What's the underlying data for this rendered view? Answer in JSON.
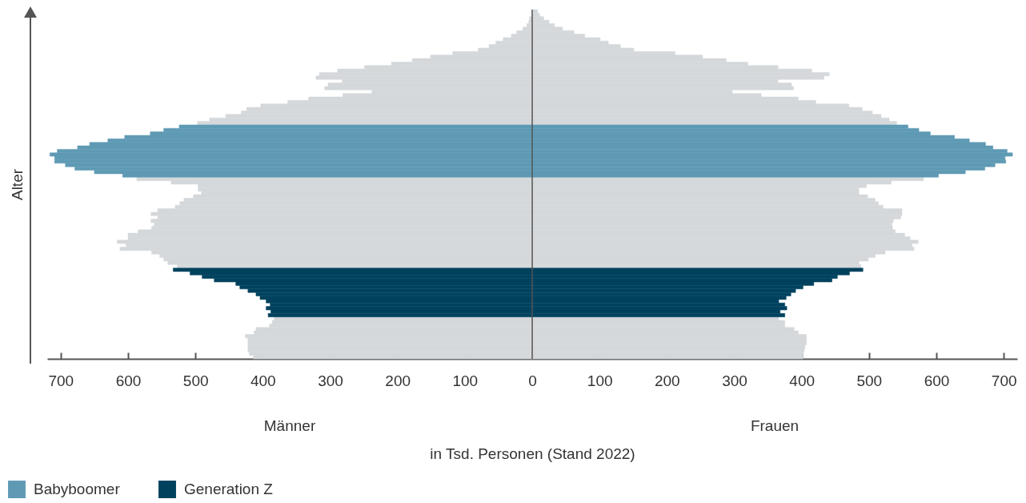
{
  "chart_data": {
    "type": "bar",
    "orientation": "horizontal",
    "stacked": true,
    "xlabel": "in Tsd. Personen (Stand 2022)",
    "ylabel": "Alter",
    "categories": [
      null,
      null,
      null,
      null,
      null,
      null,
      null,
      null,
      null,
      null,
      null,
      null,
      null,
      null,
      null,
      null,
      null,
      null,
      null,
      null,
      null,
      null,
      null,
      null,
      null,
      null,
      null,
      null,
      null,
      null,
      null,
      null,
      null,
      null,
      null,
      null,
      null,
      null,
      null,
      null,
      null,
      null,
      null,
      null,
      null,
      null,
      null,
      null,
      null,
      null,
      null,
      null,
      null,
      null,
      null,
      null,
      null,
      null,
      null,
      null,
      null,
      null,
      null,
      null,
      null,
      null,
      null,
      null,
      null,
      null,
      null,
      null,
      null,
      null,
      null,
      null,
      null,
      null,
      null,
      null,
      null,
      null,
      null,
      null,
      null,
      null,
      null,
      null,
      null,
      null,
      null,
      null,
      null,
      null,
      null,
      null,
      null,
      null,
      null,
      null
    ],
    "series": [
      {
        "color": "#d5d8db",
        "values": [
          null,
          null,
          -4,
          -5,
          -8,
          -14,
          -23,
          -31,
          -43,
          -54,
          -64,
          -80,
          -118,
          -151,
          -178,
          -209,
          -249,
          -289,
          -316,
          -321,
          -282,
          -303,
          -308,
          -238,
          -281,
          -332,
          -363,
          -403,
          -424,
          -432,
          -455,
          -479,
          -497,
          null,
          null,
          null,
          null,
          null,
          null,
          null,
          null,
          null,
          null,
          null,
          null,
          null,
          null,
          null,
          -587,
          -536,
          -496,
          -496,
          -491,
          -503,
          -517,
          -523,
          -530,
          -556,
          -566,
          -556,
          -566,
          -561,
          -565,
          -585,
          -600,
          -600,
          -616,
          -603,
          -612,
          -565,
          -553,
          -547,
          -541,
          -527,
          null,
          null,
          null,
          null,
          null,
          null,
          null,
          null,
          null,
          null,
          null,
          null,
          null,
          null,
          -383,
          -386,
          -390,
          -410,
          -413,
          -426,
          -422,
          -422,
          -422,
          -422,
          -420,
          -414
        ]
      },
      {
        "color": "#d5d8db",
        "values": [
          8,
          11,
          17,
          25,
          33,
          45,
          62,
          78,
          101,
          113,
          131,
          151,
          212,
          253,
          288,
          320,
          365,
          415,
          441,
          433,
          365,
          385,
          388,
          297,
          340,
          395,
          421,
          470,
          490,
          505,
          518,
          530,
          541,
          null,
          null,
          null,
          null,
          null,
          null,
          null,
          null,
          null,
          null,
          null,
          null,
          null,
          null,
          null,
          581,
          533,
          496,
          485,
          485,
          498,
          509,
          514,
          521,
          549,
          549,
          547,
          536,
          534,
          535,
          539,
          553,
          561,
          573,
          564,
          567,
          524,
          509,
          499,
          485,
          488,
          null,
          null,
          null,
          null,
          null,
          null,
          null,
          null,
          null,
          null,
          null,
          null,
          null,
          null,
          366,
          375,
          375,
          389,
          395,
          407,
          407,
          407,
          405,
          404,
          402,
          402
        ]
      },
      {
        "name": "Babyboomer",
        "color": "#5f9ab4",
        "values": [
          null,
          null,
          null,
          null,
          null,
          null,
          null,
          null,
          null,
          null,
          null,
          null,
          null,
          null,
          null,
          null,
          null,
          null,
          null,
          null,
          null,
          null,
          null,
          null,
          null,
          null,
          null,
          null,
          null,
          null,
          null,
          null,
          null,
          -524,
          -547,
          -567,
          -605,
          -630,
          -657,
          -675,
          -705,
          -716,
          -709,
          -709,
          -693,
          -679,
          -650,
          -608,
          null,
          null,
          null,
          null,
          null,
          null,
          null,
          null,
          null,
          null,
          null,
          null,
          null,
          null,
          null,
          null,
          null,
          null,
          null,
          null,
          null,
          null,
          null,
          null,
          null,
          null,
          null,
          null,
          null,
          null,
          null,
          null,
          null,
          null,
          null,
          null,
          null,
          null,
          null,
          null,
          null,
          null,
          null,
          null,
          null,
          null,
          null,
          null,
          null,
          null,
          null,
          null
        ]
      },
      {
        "color": "#5f9ab4",
        "values": [
          null,
          null,
          null,
          null,
          null,
          null,
          null,
          null,
          null,
          null,
          null,
          null,
          null,
          null,
          null,
          null,
          null,
          null,
          null,
          null,
          null,
          null,
          null,
          null,
          null,
          null,
          null,
          null,
          null,
          null,
          null,
          null,
          null,
          558,
          574,
          591,
          627,
          649,
          673,
          684,
          705,
          713,
          702,
          703,
          687,
          672,
          643,
          603,
          null,
          null,
          null,
          null,
          null,
          null,
          null,
          null,
          null,
          null,
          null,
          null,
          null,
          null,
          null,
          null,
          null,
          null,
          null,
          null,
          null,
          null,
          null,
          null,
          null,
          null,
          null,
          null,
          null,
          null,
          null,
          null,
          null,
          null,
          null,
          null,
          null,
          null,
          null,
          null,
          null,
          null,
          null,
          null,
          null,
          null,
          null,
          null,
          null,
          null,
          null,
          null
        ]
      },
      {
        "name": "Generation Z",
        "color": "#00425e",
        "values": [
          null,
          null,
          null,
          null,
          null,
          null,
          null,
          null,
          null,
          null,
          null,
          null,
          null,
          null,
          null,
          null,
          null,
          null,
          null,
          null,
          null,
          null,
          null,
          null,
          null,
          null,
          null,
          null,
          null,
          null,
          null,
          null,
          null,
          null,
          null,
          null,
          null,
          null,
          null,
          null,
          null,
          null,
          null,
          null,
          null,
          null,
          null,
          null,
          null,
          null,
          null,
          null,
          null,
          null,
          null,
          null,
          null,
          null,
          null,
          null,
          null,
          null,
          null,
          null,
          null,
          null,
          null,
          null,
          null,
          null,
          null,
          null,
          null,
          null,
          -533,
          -508,
          -490,
          -472,
          -440,
          -434,
          -422,
          -410,
          -404,
          -395,
          -389,
          -395,
          -388,
          -392,
          null,
          null,
          null,
          null,
          null,
          null,
          null,
          null,
          null,
          null,
          null,
          null
        ]
      },
      {
        "color": "#00425e",
        "values": [
          null,
          null,
          null,
          null,
          null,
          null,
          null,
          null,
          null,
          null,
          null,
          null,
          null,
          null,
          null,
          null,
          null,
          null,
          null,
          null,
          null,
          null,
          null,
          null,
          null,
          null,
          null,
          null,
          null,
          null,
          null,
          null,
          null,
          null,
          null,
          null,
          null,
          null,
          null,
          null,
          null,
          null,
          null,
          null,
          null,
          null,
          null,
          null,
          null,
          null,
          null,
          null,
          null,
          null,
          null,
          null,
          null,
          null,
          null,
          null,
          null,
          null,
          null,
          null,
          null,
          null,
          null,
          null,
          null,
          null,
          null,
          null,
          null,
          null,
          491,
          471,
          453,
          445,
          418,
          402,
          391,
          384,
          377,
          366,
          375,
          378,
          368,
          375,
          null,
          null,
          null,
          null,
          null,
          null,
          null,
          null,
          null,
          null,
          null,
          null
        ]
      }
    ],
    "xlim": [
      -720,
      720
    ],
    "xticks": [
      {
        "value": -700,
        "label": "700"
      },
      {
        "value": -600,
        "label": "600"
      },
      {
        "value": -500,
        "label": "500"
      },
      {
        "value": -400,
        "label": "400"
      },
      {
        "value": -300,
        "label": "300"
      },
      {
        "value": -200,
        "label": "200"
      },
      {
        "value": -100,
        "label": "100"
      },
      0,
      100,
      200,
      300,
      400,
      500,
      600,
      700
    ],
    "ref_lines": [
      {
        "axis": "x",
        "value": 0,
        "color": "#555555"
      }
    ],
    "annotations": [
      "Männer",
      "Frauen"
    ],
    "legend": "bottom left"
  }
}
